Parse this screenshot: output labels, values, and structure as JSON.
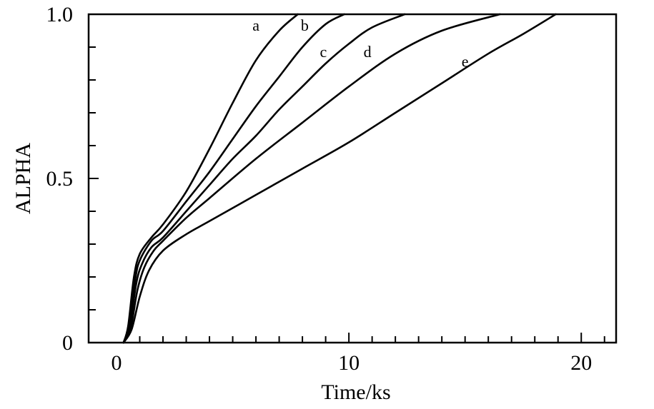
{
  "chart_data": {
    "type": "line",
    "title": "",
    "xlabel": "Time/ks",
    "ylabel": "ALPHA",
    "xlim": [
      -1.2,
      21.5
    ],
    "ylim": [
      0,
      1.0
    ],
    "x_ticks": [
      {
        "value": 0,
        "label": "0"
      },
      {
        "value": 10,
        "label": "10"
      },
      {
        "value": 20,
        "label": "20"
      }
    ],
    "y_ticks": [
      {
        "value": 0,
        "label": "0"
      },
      {
        "value": 0.5,
        "label": "0.5"
      },
      {
        "value": 1.0,
        "label": "1.0"
      }
    ],
    "grid": false,
    "line_color": "#000000",
    "series": [
      {
        "name": "a",
        "label_at": [
          6.0,
          0.95
        ],
        "points": [
          [
            0.3,
            0
          ],
          [
            0.5,
            0.05
          ],
          [
            0.75,
            0.2
          ],
          [
            1.0,
            0.27
          ],
          [
            1.5,
            0.32
          ],
          [
            2.0,
            0.36
          ],
          [
            3.0,
            0.46
          ],
          [
            4.0,
            0.59
          ],
          [
            5.0,
            0.73
          ],
          [
            6.0,
            0.86
          ],
          [
            7.0,
            0.95
          ],
          [
            7.8,
            1.0
          ]
        ]
      },
      {
        "name": "b",
        "label_at": [
          8.1,
          0.95
        ],
        "points": [
          [
            0.3,
            0
          ],
          [
            0.5,
            0.04
          ],
          [
            0.8,
            0.19
          ],
          [
            1.0,
            0.25
          ],
          [
            1.5,
            0.31
          ],
          [
            2.0,
            0.34
          ],
          [
            3.0,
            0.43
          ],
          [
            4.0,
            0.52
          ],
          [
            5.0,
            0.62
          ],
          [
            6.0,
            0.72
          ],
          [
            7.0,
            0.81
          ],
          [
            8.0,
            0.9
          ],
          [
            9.0,
            0.97
          ],
          [
            9.8,
            1.0
          ]
        ]
      },
      {
        "name": "c",
        "label_at": [
          8.9,
          0.87
        ],
        "points": [
          [
            0.3,
            0
          ],
          [
            0.55,
            0.04
          ],
          [
            0.85,
            0.18
          ],
          [
            1.1,
            0.24
          ],
          [
            1.5,
            0.29
          ],
          [
            2.0,
            0.32
          ],
          [
            3.0,
            0.4
          ],
          [
            4.0,
            0.48
          ],
          [
            5.0,
            0.56
          ],
          [
            6.0,
            0.63
          ],
          [
            7.0,
            0.71
          ],
          [
            8.0,
            0.78
          ],
          [
            9.0,
            0.85
          ],
          [
            10.0,
            0.91
          ],
          [
            11.0,
            0.96
          ],
          [
            12.4,
            1.0
          ]
        ]
      },
      {
        "name": "d",
        "label_at": [
          10.8,
          0.87
        ],
        "points": [
          [
            0.3,
            0
          ],
          [
            0.6,
            0.04
          ],
          [
            0.9,
            0.16
          ],
          [
            1.2,
            0.23
          ],
          [
            1.6,
            0.28
          ],
          [
            2.0,
            0.31
          ],
          [
            3.0,
            0.38
          ],
          [
            4.0,
            0.44
          ],
          [
            6.0,
            0.56
          ],
          [
            8.0,
            0.67
          ],
          [
            10.0,
            0.78
          ],
          [
            12.0,
            0.88
          ],
          [
            14.0,
            0.95
          ],
          [
            16.5,
            1.0
          ]
        ]
      },
      {
        "name": "e",
        "label_at": [
          15.0,
          0.84
        ],
        "points": [
          [
            0.3,
            0
          ],
          [
            0.65,
            0.04
          ],
          [
            1.0,
            0.14
          ],
          [
            1.4,
            0.22
          ],
          [
            2.0,
            0.28
          ],
          [
            3.0,
            0.33
          ],
          [
            4.0,
            0.37
          ],
          [
            6.0,
            0.45
          ],
          [
            8.0,
            0.53
          ],
          [
            10.0,
            0.61
          ],
          [
            12.0,
            0.7
          ],
          [
            14.0,
            0.79
          ],
          [
            16.0,
            0.88
          ],
          [
            17.5,
            0.94
          ],
          [
            18.9,
            1.0
          ]
        ]
      }
    ]
  }
}
